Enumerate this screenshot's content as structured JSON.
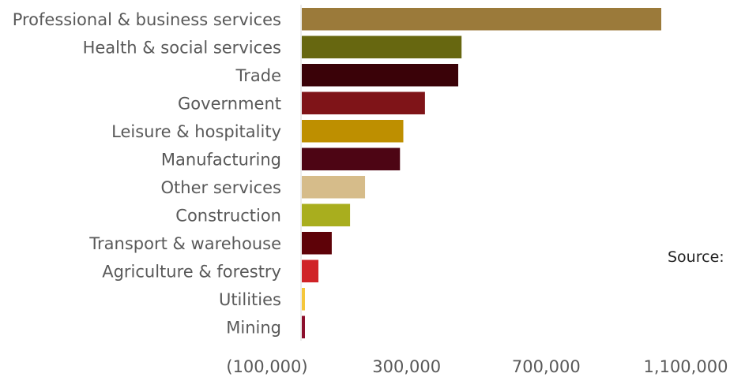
{
  "chart_data": {
    "type": "bar",
    "orientation": "horizontal",
    "categories": [
      "Professional & business services",
      "Health & social services",
      "Trade",
      "Government",
      "Leisure & hospitality",
      "Manufacturing",
      "Other services",
      "Construction",
      "Transport & warehouse",
      "Agriculture & forestry",
      "Utilities",
      "Mining"
    ],
    "values": [
      1080000,
      480000,
      470000,
      370000,
      305000,
      295000,
      190000,
      145000,
      90000,
      50000,
      5000,
      0
    ],
    "colors": [
      "#9B7A3A",
      "#676710",
      "#3A0208",
      "#7F1418",
      "#BE8F00",
      "#4D0514",
      "#D6BC8A",
      "#A9AE1E",
      "#5E0208",
      "#D02327",
      "#F5C63A",
      "#8C0F2C"
    ],
    "xlim": [
      -100000,
      1100000
    ],
    "xticks": [
      -100000,
      300000,
      700000,
      1100000
    ],
    "xtick_labels": [
      "(100,000)",
      "300,000",
      "700,000",
      "1,100,000"
    ],
    "grid": false,
    "title": "",
    "xlabel": "",
    "ylabel": ""
  },
  "note": {
    "source_label": "Source:"
  }
}
